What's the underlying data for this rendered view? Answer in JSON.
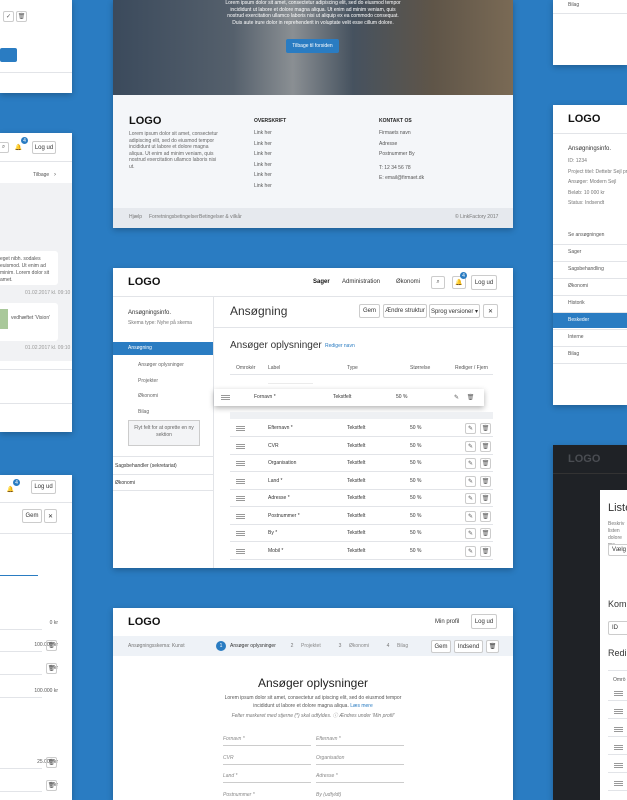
{
  "hero": {
    "text": "Lorem ipsum dolor sit amet, consectetur adipiscing elit, sed do eiusmod tempor incididunt ut labore et dolore magna aliqua. Ut enim ad minim veniam, quis nostrud exercitation ullamco laboris nisi ut aliquip ex ea commodo consequat. Duis aute irure dolor in reprehenderit in voluptate velit esse cillum dolore.",
    "button": "Tilbage til forsiden"
  },
  "footer": {
    "logo": "LOGO",
    "about": "Lorem ipsum dolor sit amet, consectetur adipiscing elit, sed do eiusmod tempor incididunt ut labore et dolore magna aliqua. Ut enim ad minim veniam, quis nostrud exercitation ullamco laboris nisi ut.",
    "links_heading": "OVERSKRIFT",
    "links": [
      "Link her",
      "Link her",
      "Link her",
      "Link her",
      "Link her",
      "Link her"
    ],
    "contact_heading": "KONTAKT OS",
    "contact": [
      "Firmaets navn",
      "Adresse",
      "Postnummer By",
      "T: 12 34 56 78",
      "E: email@firmaet.dk"
    ],
    "bottom_links": [
      "Hjælp",
      "Forretningsbetingelser",
      "Betingelser & vilkår"
    ],
    "copyright": "© LinkFactory 2017"
  },
  "admin": {
    "logo": "LOGO",
    "nav": [
      "Sager",
      "Administration",
      "Økonomi"
    ],
    "logout": "Log ud",
    "badge": "4",
    "sidebar_title": "Ansøgningsinfo.",
    "sidebar_type": "Skema type: Nyhe på skema",
    "menu_active": "Ansøgning",
    "submenu": [
      "Ansøger oplysninger",
      "Projekter",
      "Økonomi",
      "Bilag"
    ],
    "drop_hint": "Flyt felt for at oprette en ny sektion",
    "menu_bottom": [
      "Sagsbehandler (sekretariat)",
      "Økonomi"
    ],
    "page_title": "Ansøgning",
    "buttons": [
      "Gem",
      "Ændre struktur",
      "Sprog versioner ▾",
      "✕"
    ],
    "section_title": "Ansøger oplysninger",
    "rename": "Rediger navn",
    "columns": [
      "Omrokér",
      "Label",
      "Type",
      "Størrelse",
      "Rediger / Fjern"
    ],
    "dragged": {
      "label": "Fornavn *",
      "type": "Tekstfelt",
      "size": "50 %"
    },
    "rows": [
      [
        "Efternavn *",
        "Tekstfelt",
        "50 %"
      ],
      [
        "CVR",
        "Tekstfelt",
        "50 %"
      ],
      [
        "Organisation",
        "Tekstfelt",
        "50 %"
      ],
      [
        "Land *",
        "Tekstfelt",
        "50 %"
      ],
      [
        "Adresse *",
        "Tekstfelt",
        "50 %"
      ],
      [
        "Postnummer *",
        "Tekstfelt",
        "50 %"
      ],
      [
        "By *",
        "Tekstfelt",
        "50 %"
      ],
      [
        "Mobil *",
        "Tekstfelt",
        "50 %"
      ]
    ]
  },
  "applicant": {
    "logo": "LOGO",
    "profile": "Min profil",
    "logout": "Log ud",
    "schema": "Ansøgningsskema: Kunst",
    "steps": [
      [
        "1",
        "Ansøger oplysninger"
      ],
      [
        "2",
        "Projektet"
      ],
      [
        "3",
        "Økonomi"
      ],
      [
        "4",
        "Bilag"
      ]
    ],
    "save": "Gem",
    "submit": "Indsend",
    "title": "Ansøger oplysninger",
    "intro": "Lorem ipsum dolor sit amet, consectetur ad ipiscing elit, sed do eiusmod tempor incididunt ut labore et dolore magna aliqua.",
    "read_more": "Læs mere",
    "note": "Felter markeret med stjerne (*) skal udfyldes.  ⓘ Ændres under 'Min profil'",
    "fields": [
      [
        "Fornavn *",
        "Efternavn *"
      ],
      [
        "CVR",
        "Organisation"
      ],
      [
        "Land *",
        "Adresse *"
      ],
      [
        "Postnummer *",
        "By (udfyldt)"
      ]
    ]
  },
  "left_mid": {
    "badge": "4",
    "logout": "Log ud",
    "back": "Tilbage",
    "message1": "eget nibh. sodales euismod. Ut enim ad minim. Lorem dolor sit amet.",
    "time1": "01.02.2017 kl. 09:10",
    "message2": "vedhæftet 'Vision'",
    "time2": "01.02.2017 kl. 09:10"
  },
  "left_bottom": {
    "badge": "4",
    "logout": "Log ud",
    "save": "Gem",
    "amounts": [
      "0 kr",
      "100.000 kr",
      "0 kr",
      "100.000 kr",
      "25.000 kr",
      "0 kr"
    ]
  },
  "right_top": {
    "item": "Bilag"
  },
  "right_mid": {
    "logo": "LOGO",
    "title": "Ansøgningsinfo.",
    "info": [
      "ID: 1234",
      "Project titel: Dettebr Sejl projekter",
      "Ansøger: Modern Sejl",
      "Beløb: 10 000 kr",
      "Status: Indsendt"
    ],
    "menu": [
      "Se ansøgningen",
      "Sager",
      "Sagsbehandling",
      "Økonomi",
      "Historik",
      "Beskeder",
      "Interne",
      "Bilag"
    ]
  },
  "right_bottom": {
    "logo": "LOGO",
    "modal_title": "Liste",
    "desc": "Beskriv listen dolore ma",
    "select": "Vælg",
    "section": "Kom",
    "input": "ID",
    "section2": "Redi",
    "column": "Omrö"
  }
}
